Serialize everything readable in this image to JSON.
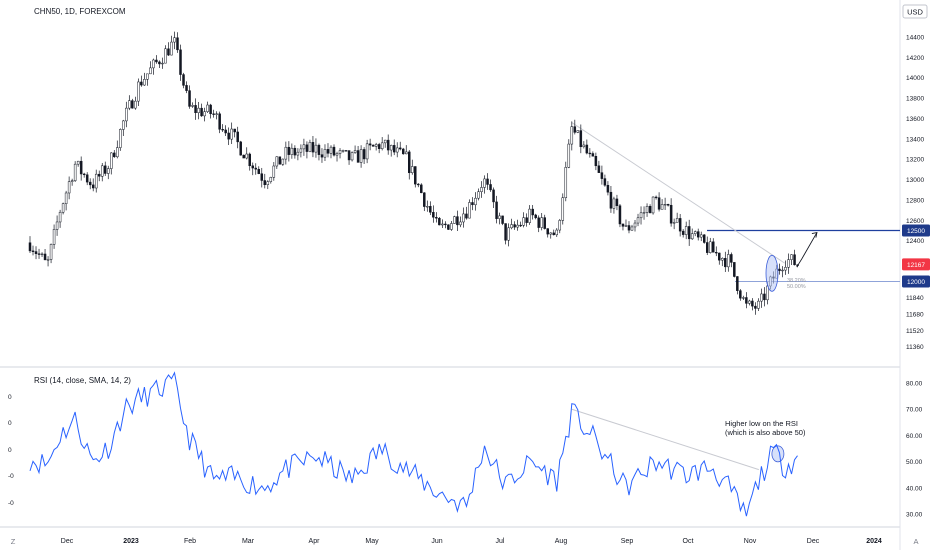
{
  "header": {
    "symbol_title": "CHN50, 1D, FOREXCOM",
    "currency_button": "USD"
  },
  "rsi_panel": {
    "title": "RSI (14, close, SMA, 14, 2)",
    "left_ticks": [
      "0",
      "0",
      "0",
      "-0",
      "-0"
    ]
  },
  "time_axis": {
    "left_button": "Z",
    "right_button": "A"
  },
  "annotations": {
    "rsi_note_line1": "Higher low on the RSI",
    "rsi_note_line2": "(which is also above 50)",
    "fib_38": "38.20%",
    "fib_50": "50.00%"
  },
  "colors": {
    "candle": "#131722",
    "rsi_line": "#2962ff",
    "resistance_line": "#1e3f9e",
    "support_line": "#8fa3d9",
    "trendline": "#c8cad1",
    "last_price_badge": "#f23645",
    "level_badge": "#1e3a8a",
    "ellipse_fill": "#b7c6f5"
  },
  "chart_data": [
    {
      "type": "candlestick",
      "title": "CHN50, 1D, FOREXCOM",
      "currency": "USD",
      "x": [
        "Dec",
        "2023",
        "Feb",
        "Mar",
        "Apr",
        "May",
        "Jun",
        "Jul",
        "Aug",
        "Sep",
        "Oct",
        "Nov",
        "Dec",
        "2024"
      ],
      "y_ticks": [
        14400,
        14200,
        14000,
        13800,
        13600,
        13400,
        13200,
        13000,
        12800,
        12600,
        12400,
        12000,
        11840,
        11680,
        11520,
        11360
      ],
      "ylim": [
        11360,
        14450
      ],
      "close_path": [
        {
          "date": "2022-11-21",
          "close": 12380
        },
        {
          "date": "2022-11-29",
          "close": 12150
        },
        {
          "date": "2022-12-05",
          "close": 12700
        },
        {
          "date": "2022-12-12",
          "close": 13150
        },
        {
          "date": "2022-12-20",
          "close": 12950
        },
        {
          "date": "2022-12-28",
          "close": 13150
        },
        {
          "date": "2023-01-04",
          "close": 13600
        },
        {
          "date": "2023-01-11",
          "close": 13950
        },
        {
          "date": "2023-01-27",
          "close": 14350
        },
        {
          "date": "2023-02-03",
          "close": 13700
        },
        {
          "date": "2023-02-14",
          "close": 13650
        },
        {
          "date": "2023-02-24",
          "close": 13400
        },
        {
          "date": "2023-03-10",
          "close": 13000
        },
        {
          "date": "2023-03-20",
          "close": 13250
        },
        {
          "date": "2023-04-03",
          "close": 13300
        },
        {
          "date": "2023-04-20",
          "close": 13200
        },
        {
          "date": "2023-05-03",
          "close": 13350
        },
        {
          "date": "2023-05-15",
          "close": 13200
        },
        {
          "date": "2023-05-30",
          "close": 12500
        },
        {
          "date": "2023-06-12",
          "close": 12700
        },
        {
          "date": "2023-06-20",
          "close": 13000
        },
        {
          "date": "2023-06-30",
          "close": 12450
        },
        {
          "date": "2023-07-12",
          "close": 12650
        },
        {
          "date": "2023-07-24",
          "close": 12450
        },
        {
          "date": "2023-07-31",
          "close": 13500
        },
        {
          "date": "2023-08-10",
          "close": 13150
        },
        {
          "date": "2023-08-25",
          "close": 12500
        },
        {
          "date": "2023-09-08",
          "close": 12800
        },
        {
          "date": "2023-09-22",
          "close": 12500
        },
        {
          "date": "2023-10-04",
          "close": 12300
        },
        {
          "date": "2023-10-12",
          "close": 12200
        },
        {
          "date": "2023-10-20",
          "close": 11750
        },
        {
          "date": "2023-10-26",
          "close": 11750
        },
        {
          "date": "2023-11-02",
          "close": 12050
        },
        {
          "date": "2023-11-07",
          "close": 12220
        },
        {
          "date": "2023-11-14",
          "close": 12167
        }
      ],
      "last_price": 12167,
      "levels": [
        {
          "label": "12500",
          "value": 12500
        },
        {
          "label": "12000",
          "value": 12000
        }
      ],
      "fibonacci": [
        {
          "label": "38.20%",
          "value": 12020
        },
        {
          "label": "50.00%",
          "value": 11960
        }
      ],
      "trendline": {
        "from": {
          "date": "2023-07-31",
          "value": 13560
        },
        "to": {
          "date": "2023-11-07",
          "value": 12180
        }
      },
      "projection_arrow": {
        "from": {
          "date": "2023-11-14",
          "value": 12200
        },
        "to": {
          "date": "2023-11-22",
          "value": 12480
        }
      },
      "grid": false
    },
    {
      "type": "line",
      "title": "RSI (14, close, SMA, 14, 2)",
      "y_ticks": [
        80,
        70,
        60,
        50,
        40,
        30
      ],
      "ylim": [
        26,
        83
      ],
      "series": [
        {
          "values": [
            {
              "date": "2022-11-21",
              "value": 51
            },
            {
              "date": "2022-11-29",
              "value": 49
            },
            {
              "date": "2022-12-05",
              "value": 60
            },
            {
              "date": "2022-12-12",
              "value": 66
            },
            {
              "date": "2022-12-20",
              "value": 50
            },
            {
              "date": "2022-12-28",
              "value": 56
            },
            {
              "date": "2023-01-04",
              "value": 70
            },
            {
              "date": "2023-01-11",
              "value": 74
            },
            {
              "date": "2023-01-27",
              "value": 80
            },
            {
              "date": "2023-02-03",
              "value": 59
            },
            {
              "date": "2023-02-14",
              "value": 43
            },
            {
              "date": "2023-02-24",
              "value": 44
            },
            {
              "date": "2023-03-10",
              "value": 40
            },
            {
              "date": "2023-03-20",
              "value": 47
            },
            {
              "date": "2023-04-03",
              "value": 52
            },
            {
              "date": "2023-04-20",
              "value": 43
            },
            {
              "date": "2023-05-03",
              "value": 55
            },
            {
              "date": "2023-05-15",
              "value": 47
            },
            {
              "date": "2023-05-30",
              "value": 38
            },
            {
              "date": "2023-06-12",
              "value": 33
            },
            {
              "date": "2023-06-20",
              "value": 56
            },
            {
              "date": "2023-06-30",
              "value": 41
            },
            {
              "date": "2023-07-12",
              "value": 50
            },
            {
              "date": "2023-07-24",
              "value": 43
            },
            {
              "date": "2023-07-31",
              "value": 69
            },
            {
              "date": "2023-08-10",
              "value": 59
            },
            {
              "date": "2023-08-25",
              "value": 40
            },
            {
              "date": "2023-09-08",
              "value": 50
            },
            {
              "date": "2023-09-22",
              "value": 45
            },
            {
              "date": "2023-10-04",
              "value": 48
            },
            {
              "date": "2023-10-12",
              "value": 40
            },
            {
              "date": "2023-10-20",
              "value": 29
            },
            {
              "date": "2023-10-26",
              "value": 43
            },
            {
              "date": "2023-11-02",
              "value": 54
            },
            {
              "date": "2023-11-07",
              "value": 48
            },
            {
              "date": "2023-11-14",
              "value": 52
            }
          ]
        }
      ],
      "trendline": {
        "from": {
          "date": "2023-07-31",
          "value": 70
        },
        "to": {
          "date": "2023-10-26",
          "value": 47
        }
      },
      "highlight": {
        "date": "2023-11-02",
        "value": 53
      },
      "grid": false
    }
  ]
}
